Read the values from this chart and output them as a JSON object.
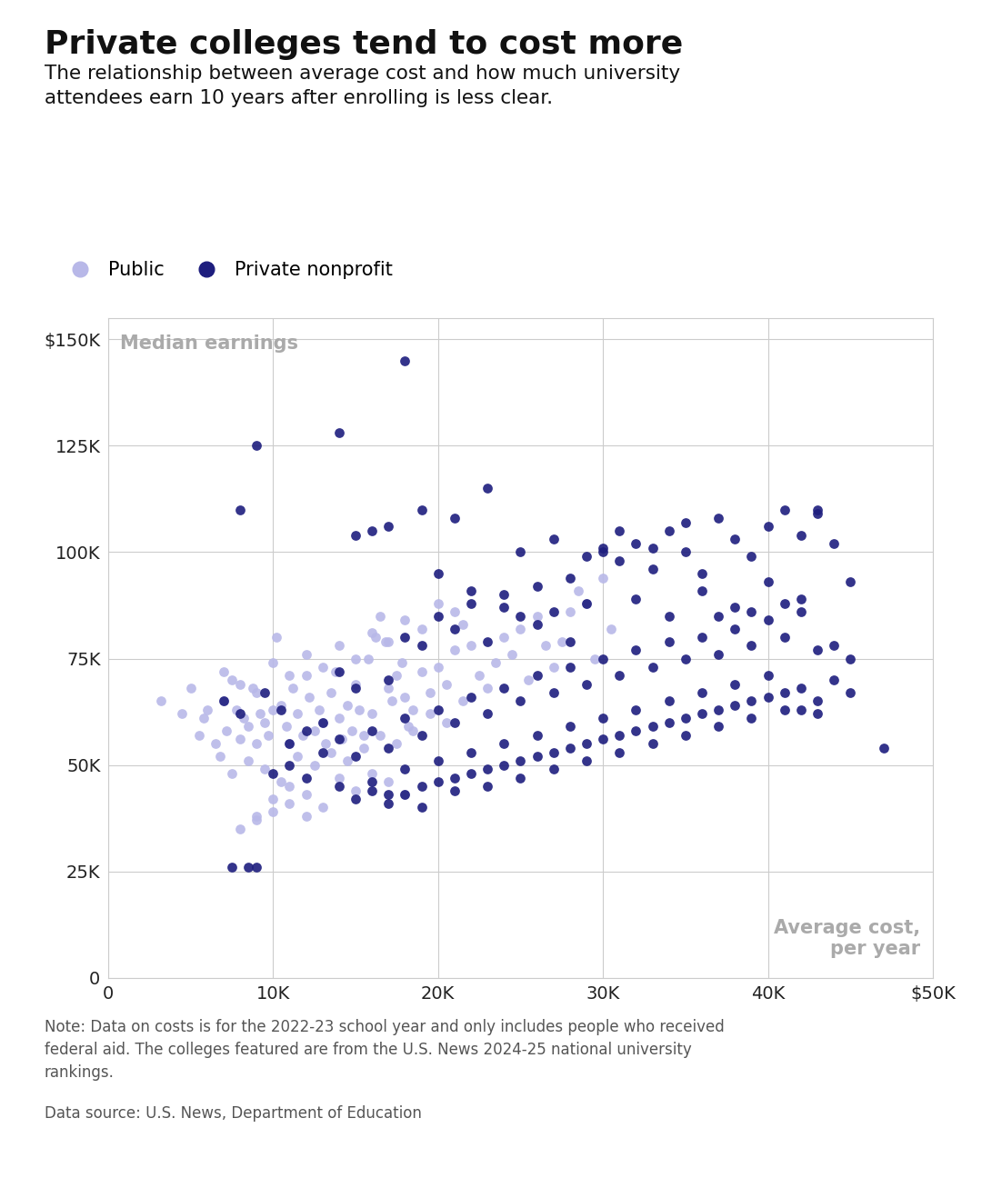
{
  "title": "Private colleges tend to cost more",
  "subtitle": "The relationship between average cost and how much university\nattendees earn 10 years after enrolling is less clear.",
  "note": "Note: Data on costs is for the 2022-23 school year and only includes people who received\nfederal aid. The colleges featured are from the U.S. News 2024-25 national university\nrankings.",
  "source": "Data source: U.S. News, Department of Education",
  "xlabel_annotation": "Average cost,\nper year",
  "ylabel_annotation": "Median earnings",
  "public_color": "#b8b8e8",
  "private_color": "#1e1e7e",
  "public_label": "Public",
  "private_label": "Private nonprofit",
  "xlim": [
    0,
    50000
  ],
  "ylim": [
    0,
    155000
  ],
  "xticks": [
    0,
    10000,
    20000,
    30000,
    40000,
    50000
  ],
  "yticks": [
    0,
    25000,
    50000,
    75000,
    100000,
    125000,
    150000
  ],
  "xtick_labels": [
    "0",
    "10K",
    "20K",
    "30K",
    "40K",
    "$50K"
  ],
  "ytick_labels": [
    "0",
    "25K",
    "50K",
    "75K",
    "100K",
    "125K",
    "$150K"
  ],
  "public_data": [
    [
      3200,
      65000
    ],
    [
      4500,
      62000
    ],
    [
      5000,
      68000
    ],
    [
      5500,
      57000
    ],
    [
      5800,
      61000
    ],
    [
      6000,
      63000
    ],
    [
      6500,
      55000
    ],
    [
      6800,
      52000
    ],
    [
      7000,
      65000
    ],
    [
      7200,
      58000
    ],
    [
      7500,
      70000
    ],
    [
      7800,
      63000
    ],
    [
      8000,
      56000
    ],
    [
      8200,
      61000
    ],
    [
      8500,
      59000
    ],
    [
      8800,
      68000
    ],
    [
      9000,
      55000
    ],
    [
      9200,
      62000
    ],
    [
      9500,
      60000
    ],
    [
      9700,
      57000
    ],
    [
      10000,
      63000
    ],
    [
      10200,
      80000
    ],
    [
      10500,
      64000
    ],
    [
      10800,
      59000
    ],
    [
      11000,
      55000
    ],
    [
      11200,
      68000
    ],
    [
      11500,
      62000
    ],
    [
      11800,
      57000
    ],
    [
      12000,
      71000
    ],
    [
      12200,
      66000
    ],
    [
      12500,
      58000
    ],
    [
      12800,
      63000
    ],
    [
      13000,
      60000
    ],
    [
      13200,
      55000
    ],
    [
      13500,
      67000
    ],
    [
      13800,
      72000
    ],
    [
      14000,
      61000
    ],
    [
      14200,
      56000
    ],
    [
      14500,
      64000
    ],
    [
      14800,
      58000
    ],
    [
      15000,
      69000
    ],
    [
      15200,
      63000
    ],
    [
      15500,
      57000
    ],
    [
      15800,
      75000
    ],
    [
      16000,
      62000
    ],
    [
      16200,
      80000
    ],
    [
      16500,
      85000
    ],
    [
      16800,
      79000
    ],
    [
      17000,
      68000
    ],
    [
      17200,
      65000
    ],
    [
      17500,
      71000
    ],
    [
      17800,
      74000
    ],
    [
      18000,
      66000
    ],
    [
      18200,
      59000
    ],
    [
      18500,
      63000
    ],
    [
      19000,
      72000
    ],
    [
      19500,
      67000
    ],
    [
      20000,
      73000
    ],
    [
      20500,
      69000
    ],
    [
      21000,
      77000
    ],
    [
      21500,
      83000
    ],
    [
      22000,
      78000
    ],
    [
      22500,
      71000
    ],
    [
      23000,
      68000
    ],
    [
      23500,
      74000
    ],
    [
      24000,
      80000
    ],
    [
      24500,
      76000
    ],
    [
      25000,
      82000
    ],
    [
      25500,
      70000
    ],
    [
      26000,
      85000
    ],
    [
      26500,
      78000
    ],
    [
      27000,
      73000
    ],
    [
      27500,
      79000
    ],
    [
      28000,
      86000
    ],
    [
      28500,
      91000
    ],
    [
      29000,
      88000
    ],
    [
      29500,
      75000
    ],
    [
      30000,
      94000
    ],
    [
      30500,
      82000
    ],
    [
      9000,
      38000
    ],
    [
      10000,
      42000
    ],
    [
      11000,
      45000
    ],
    [
      12000,
      43000
    ],
    [
      13000,
      40000
    ],
    [
      14000,
      47000
    ],
    [
      15000,
      44000
    ],
    [
      16000,
      48000
    ],
    [
      17000,
      46000
    ],
    [
      18000,
      43000
    ],
    [
      7500,
      48000
    ],
    [
      8500,
      51000
    ],
    [
      9500,
      49000
    ],
    [
      10500,
      46000
    ],
    [
      11500,
      52000
    ],
    [
      12500,
      50000
    ],
    [
      13500,
      53000
    ],
    [
      14500,
      51000
    ],
    [
      15500,
      54000
    ],
    [
      16500,
      57000
    ],
    [
      17500,
      55000
    ],
    [
      18500,
      58000
    ],
    [
      19500,
      62000
    ],
    [
      20500,
      60000
    ],
    [
      21500,
      65000
    ],
    [
      8000,
      35000
    ],
    [
      9000,
      37000
    ],
    [
      10000,
      39000
    ],
    [
      11000,
      41000
    ],
    [
      12000,
      38000
    ],
    [
      7000,
      72000
    ],
    [
      8000,
      69000
    ],
    [
      9000,
      67000
    ],
    [
      10000,
      74000
    ],
    [
      11000,
      71000
    ],
    [
      12000,
      76000
    ],
    [
      13000,
      73000
    ],
    [
      14000,
      78000
    ],
    [
      15000,
      75000
    ],
    [
      16000,
      81000
    ],
    [
      17000,
      79000
    ],
    [
      18000,
      84000
    ],
    [
      19000,
      82000
    ],
    [
      20000,
      88000
    ],
    [
      21000,
      86000
    ]
  ],
  "private_data": [
    [
      7500,
      26000
    ],
    [
      8500,
      26000
    ],
    [
      9000,
      26000
    ],
    [
      8000,
      110000
    ],
    [
      9000,
      125000
    ],
    [
      14000,
      128000
    ],
    [
      18000,
      145000
    ],
    [
      7000,
      65000
    ],
    [
      8000,
      62000
    ],
    [
      9500,
      67000
    ],
    [
      10500,
      63000
    ],
    [
      11000,
      55000
    ],
    [
      12000,
      58000
    ],
    [
      13000,
      60000
    ],
    [
      14000,
      72000
    ],
    [
      15000,
      68000
    ],
    [
      16000,
      105000
    ],
    [
      17000,
      70000
    ],
    [
      18000,
      80000
    ],
    [
      19000,
      78000
    ],
    [
      20000,
      85000
    ],
    [
      21000,
      82000
    ],
    [
      22000,
      88000
    ],
    [
      23000,
      79000
    ],
    [
      24000,
      90000
    ],
    [
      25000,
      85000
    ],
    [
      26000,
      92000
    ],
    [
      27000,
      86000
    ],
    [
      28000,
      94000
    ],
    [
      29000,
      88000
    ],
    [
      30000,
      100000
    ],
    [
      31000,
      98000
    ],
    [
      32000,
      102000
    ],
    [
      33000,
      96000
    ],
    [
      34000,
      105000
    ],
    [
      35000,
      100000
    ],
    [
      36000,
      95000
    ],
    [
      37000,
      108000
    ],
    [
      38000,
      103000
    ],
    [
      39000,
      99000
    ],
    [
      40000,
      106000
    ],
    [
      41000,
      110000
    ],
    [
      42000,
      104000
    ],
    [
      43000,
      109000
    ],
    [
      44000,
      102000
    ],
    [
      45000,
      93000
    ],
    [
      47000,
      54000
    ],
    [
      10000,
      48000
    ],
    [
      11000,
      50000
    ],
    [
      12000,
      47000
    ],
    [
      13000,
      53000
    ],
    [
      14000,
      56000
    ],
    [
      15000,
      52000
    ],
    [
      16000,
      58000
    ],
    [
      17000,
      54000
    ],
    [
      18000,
      61000
    ],
    [
      19000,
      57000
    ],
    [
      20000,
      63000
    ],
    [
      21000,
      60000
    ],
    [
      22000,
      66000
    ],
    [
      23000,
      62000
    ],
    [
      24000,
      68000
    ],
    [
      25000,
      65000
    ],
    [
      26000,
      71000
    ],
    [
      27000,
      67000
    ],
    [
      28000,
      73000
    ],
    [
      29000,
      69000
    ],
    [
      30000,
      75000
    ],
    [
      31000,
      71000
    ],
    [
      32000,
      77000
    ],
    [
      33000,
      73000
    ],
    [
      34000,
      79000
    ],
    [
      35000,
      75000
    ],
    [
      36000,
      80000
    ],
    [
      37000,
      76000
    ],
    [
      38000,
      82000
    ],
    [
      39000,
      78000
    ],
    [
      40000,
      84000
    ],
    [
      41000,
      80000
    ],
    [
      42000,
      86000
    ],
    [
      43000,
      77000
    ],
    [
      44000,
      78000
    ],
    [
      45000,
      75000
    ],
    [
      20000,
      95000
    ],
    [
      22000,
      91000
    ],
    [
      24000,
      87000
    ],
    [
      26000,
      83000
    ],
    [
      28000,
      79000
    ],
    [
      30000,
      101000
    ],
    [
      32000,
      89000
    ],
    [
      34000,
      85000
    ],
    [
      36000,
      91000
    ],
    [
      38000,
      87000
    ],
    [
      40000,
      93000
    ],
    [
      42000,
      89000
    ],
    [
      16000,
      46000
    ],
    [
      17000,
      43000
    ],
    [
      18000,
      49000
    ],
    [
      19000,
      45000
    ],
    [
      20000,
      51000
    ],
    [
      21000,
      47000
    ],
    [
      22000,
      53000
    ],
    [
      23000,
      49000
    ],
    [
      24000,
      55000
    ],
    [
      25000,
      51000
    ],
    [
      26000,
      57000
    ],
    [
      27000,
      53000
    ],
    [
      28000,
      59000
    ],
    [
      29000,
      55000
    ],
    [
      30000,
      61000
    ],
    [
      31000,
      57000
    ],
    [
      32000,
      63000
    ],
    [
      33000,
      59000
    ],
    [
      34000,
      65000
    ],
    [
      35000,
      61000
    ],
    [
      36000,
      67000
    ],
    [
      37000,
      63000
    ],
    [
      38000,
      69000
    ],
    [
      39000,
      65000
    ],
    [
      40000,
      71000
    ],
    [
      41000,
      67000
    ],
    [
      42000,
      63000
    ],
    [
      43000,
      62000
    ],
    [
      15000,
      104000
    ],
    [
      17000,
      106000
    ],
    [
      19000,
      110000
    ],
    [
      21000,
      108000
    ],
    [
      23000,
      115000
    ],
    [
      25000,
      100000
    ],
    [
      27000,
      103000
    ],
    [
      29000,
      99000
    ],
    [
      31000,
      105000
    ],
    [
      33000,
      101000
    ],
    [
      35000,
      107000
    ],
    [
      37000,
      85000
    ],
    [
      39000,
      86000
    ],
    [
      41000,
      88000
    ],
    [
      43000,
      110000
    ],
    [
      14000,
      45000
    ],
    [
      15000,
      42000
    ],
    [
      16000,
      44000
    ],
    [
      17000,
      41000
    ],
    [
      18000,
      43000
    ],
    [
      19000,
      40000
    ],
    [
      20000,
      46000
    ],
    [
      21000,
      44000
    ],
    [
      22000,
      48000
    ],
    [
      23000,
      45000
    ],
    [
      24000,
      50000
    ],
    [
      25000,
      47000
    ],
    [
      26000,
      52000
    ],
    [
      27000,
      49000
    ],
    [
      28000,
      54000
    ],
    [
      29000,
      51000
    ],
    [
      30000,
      56000
    ],
    [
      31000,
      53000
    ],
    [
      32000,
      58000
    ],
    [
      33000,
      55000
    ],
    [
      34000,
      60000
    ],
    [
      35000,
      57000
    ],
    [
      36000,
      62000
    ],
    [
      37000,
      59000
    ],
    [
      38000,
      64000
    ],
    [
      39000,
      61000
    ],
    [
      40000,
      66000
    ],
    [
      41000,
      63000
    ],
    [
      42000,
      68000
    ],
    [
      43000,
      65000
    ],
    [
      44000,
      70000
    ],
    [
      45000,
      67000
    ]
  ]
}
